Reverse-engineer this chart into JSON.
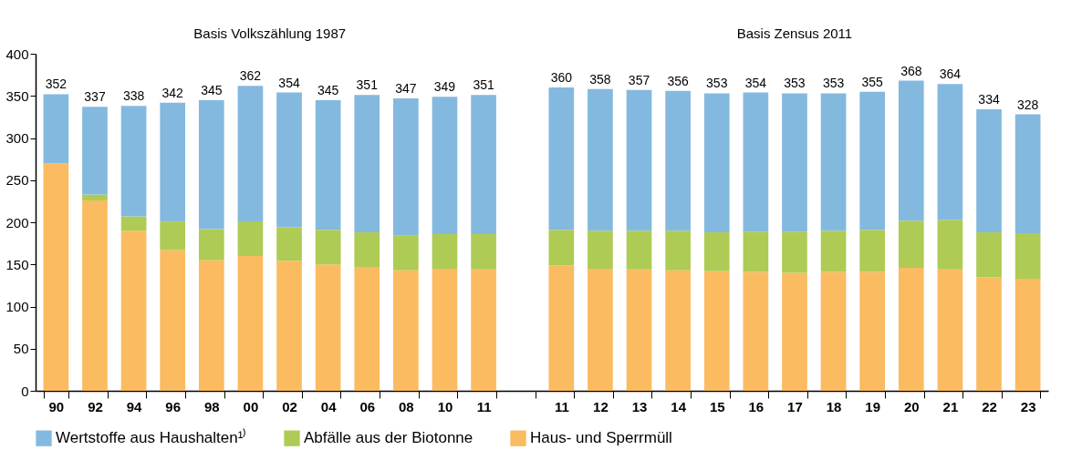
{
  "chart_data": {
    "type": "bar",
    "stacked": true,
    "categories": [
      "90",
      "92",
      "94",
      "96",
      "98",
      "00",
      "02",
      "04",
      "06",
      "08",
      "10",
      "11",
      null,
      "11",
      "12",
      "13",
      "14",
      "15",
      "16",
      "17",
      "18",
      "19",
      "20",
      "21",
      "22",
      "23"
    ],
    "series": [
      {
        "name": "Haus- und Sperrmüll",
        "color": "#fbbb60",
        "values": [
          270,
          226,
          190,
          167,
          155,
          160,
          154,
          150,
          147,
          143,
          145,
          144,
          null,
          149,
          145,
          144,
          143,
          142,
          141,
          140,
          141,
          141,
          146,
          144,
          135,
          133
        ]
      },
      {
        "name": "Abfälle aus der Biotonne",
        "color": "#aecb55",
        "values": [
          0,
          7,
          17,
          34,
          37,
          41,
          40,
          41,
          41,
          41,
          41,
          42,
          null,
          42,
          45,
          46,
          47,
          46,
          48,
          49,
          49,
          50,
          56,
          59,
          53,
          54
        ]
      },
      {
        "name": "Wertstoffe aus Haushalten¹⁾",
        "color": "#84b9df",
        "values": [
          82,
          104,
          131,
          141,
          153,
          161,
          160,
          154,
          163,
          163,
          163,
          165,
          null,
          169,
          168,
          167,
          166,
          165,
          165,
          164,
          163,
          164,
          166,
          161,
          146,
          141
        ]
      }
    ],
    "totals": [
      "352",
      "337",
      "338",
      "342",
      "345",
      "362",
      "354",
      "345",
      "351",
      "347",
      "349",
      "351",
      null,
      "360",
      "358",
      "357",
      "356",
      "353",
      "354",
      "353",
      "353",
      "355",
      "368",
      "364",
      "334",
      "328"
    ],
    "annotations": [
      "Basis Volkszählung 1987",
      "Basis Zensus 2011"
    ],
    "ylim": [
      0,
      400
    ],
    "yticks": [
      0,
      50,
      100,
      150,
      200,
      250,
      300,
      350,
      400
    ],
    "grid": false,
    "legend": "bottom"
  }
}
